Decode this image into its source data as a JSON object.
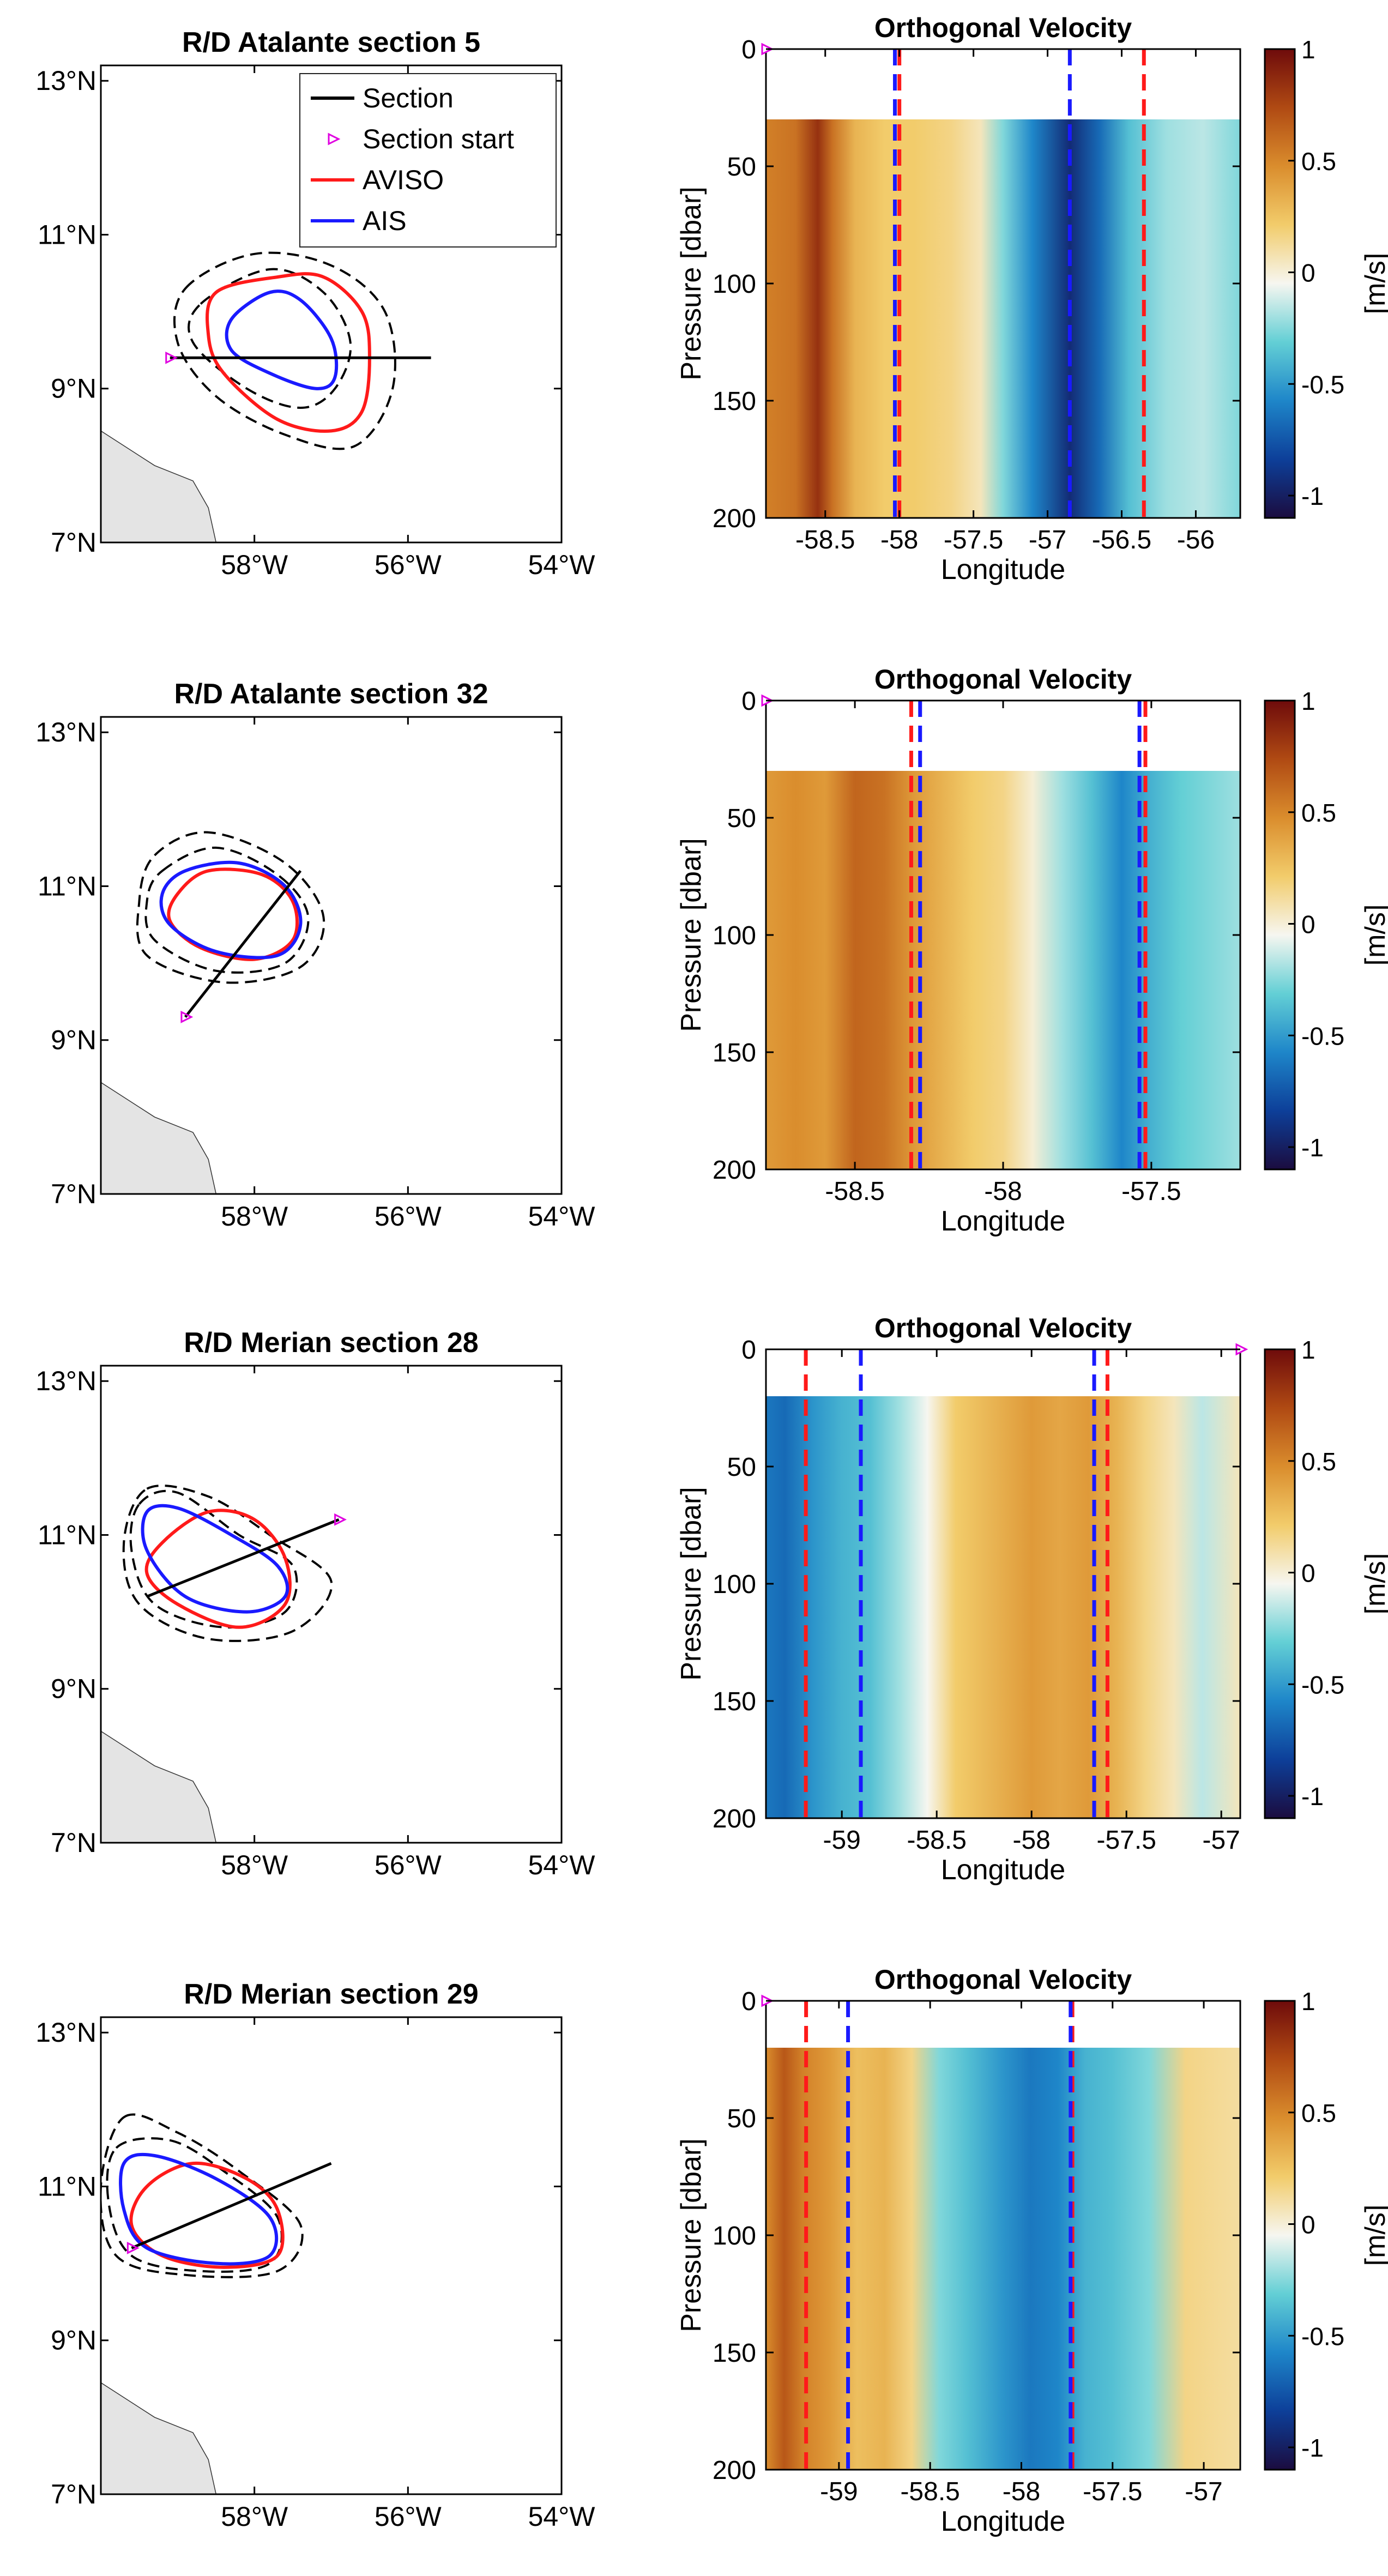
{
  "legend": [
    "Section",
    "Section start",
    "AVISO",
    "AIS"
  ],
  "colors": {
    "section": "#000000",
    "section_start": "#e000e0",
    "aviso": "#ff1a1a",
    "ais": "#1a1aff",
    "land": "#e4e4e4"
  },
  "map_axes": {
    "lat_ticks": [
      {
        "v": 13,
        "label": "13°N"
      },
      {
        "v": 11,
        "label": "11°N"
      },
      {
        "v": 9,
        "label": "9°N"
      },
      {
        "v": 7,
        "label": "7°N"
      }
    ],
    "lon_ticks": [
      {
        "v": -58,
        "label": "58°W"
      },
      {
        "v": -56,
        "label": "56°W"
      },
      {
        "v": -54,
        "label": "54°W"
      }
    ],
    "lon_range": [
      -60,
      -54
    ],
    "lat_range": [
      7,
      13.2
    ]
  },
  "velocity_axes": {
    "title": "Orthogonal Velocity",
    "xlabel": "Longitude",
    "ylabel": "Pressure [dbar]",
    "y_ticks": [
      "0",
      "50",
      "100",
      "150",
      "200"
    ],
    "colorbar_label": "[m/s]",
    "colorbar_ticks": [
      "1",
      "0.5",
      "0",
      "-0.5",
      "-1"
    ],
    "colormap": [
      "#1b0c3f",
      "#0d3f99",
      "#1e86c9",
      "#63cfd5",
      "#f6f6f0",
      "#f2cc6b",
      "#da8d2d",
      "#b04a13",
      "#6e0b0b"
    ]
  },
  "chart_data": [
    {
      "type": "map",
      "title": "R/D Atalante section 5",
      "section_line": [
        [
          -59.1,
          9.4
        ],
        [
          -55.7,
          9.4
        ]
      ],
      "section_start": [
        -59.1,
        9.4
      ],
      "aviso_contour": [
        [
          -58.5,
          10.25
        ],
        [
          -57.7,
          10.45
        ],
        [
          -57.1,
          10.45
        ],
        [
          -56.6,
          10.0
        ],
        [
          -56.5,
          9.4
        ],
        [
          -56.6,
          8.7
        ],
        [
          -57.0,
          8.45
        ],
        [
          -57.7,
          8.6
        ],
        [
          -58.4,
          9.2
        ],
        [
          -58.6,
          9.7
        ]
      ],
      "ais_contour": [
        [
          -58.3,
          9.9
        ],
        [
          -57.8,
          10.25
        ],
        [
          -57.4,
          10.15
        ],
        [
          -57.0,
          9.65
        ],
        [
          -56.95,
          9.15
        ],
        [
          -57.2,
          9.0
        ],
        [
          -57.8,
          9.2
        ],
        [
          -58.3,
          9.5
        ]
      ],
      "dashed_inner": [
        [
          -58.7,
          10.1
        ],
        [
          -57.8,
          10.55
        ],
        [
          -57.1,
          10.25
        ],
        [
          -56.75,
          9.6
        ],
        [
          -56.95,
          9.0
        ],
        [
          -57.4,
          8.75
        ],
        [
          -58.1,
          9.0
        ],
        [
          -58.8,
          9.6
        ]
      ],
      "dashed_outer": [
        [
          -58.9,
          10.3
        ],
        [
          -58.0,
          10.75
        ],
        [
          -57.0,
          10.6
        ],
        [
          -56.3,
          10.0
        ],
        [
          -56.2,
          9.0
        ],
        [
          -56.7,
          8.25
        ],
        [
          -57.6,
          8.4
        ],
        [
          -58.5,
          8.9
        ],
        [
          -59.0,
          9.6
        ]
      ]
    },
    {
      "type": "heatmap",
      "title": "Orthogonal Velocity",
      "xlim": [
        -58.9,
        -55.7
      ],
      "x_ticks": [
        -58.5,
        -58,
        -57.5,
        -57,
        -56.5,
        -56
      ],
      "x_tick_labels": [
        "-58.5",
        "-58",
        "-57.5",
        "-57",
        "-56.5",
        "-56"
      ],
      "ylim": [
        0,
        200
      ],
      "data_top_pressure": 30,
      "section_start_x": -58.9,
      "aviso_edges": [
        -58.0,
        -56.35
      ],
      "ais_edges": [
        -58.03,
        -56.85
      ],
      "velocity_profile": [
        [
          -58.9,
          0.55
        ],
        [
          -58.7,
          0.6
        ],
        [
          -58.55,
          0.85
        ],
        [
          -58.45,
          0.6
        ],
        [
          -58.3,
          0.35
        ],
        [
          -58.1,
          0.25
        ],
        [
          -57.9,
          0.25
        ],
        [
          -57.65,
          0.2
        ],
        [
          -57.45,
          0.1
        ],
        [
          -57.3,
          -0.2
        ],
        [
          -57.1,
          -0.5
        ],
        [
          -56.85,
          -0.85
        ],
        [
          -56.65,
          -0.6
        ],
        [
          -56.45,
          -0.3
        ],
        [
          -56.2,
          -0.15
        ],
        [
          -55.95,
          -0.1
        ],
        [
          -55.7,
          -0.2
        ]
      ]
    },
    {
      "type": "map",
      "title": "R/D Atalante section 32",
      "section_line": [
        [
          -58.9,
          9.3
        ],
        [
          -57.4,
          11.2
        ]
      ],
      "section_start": [
        -58.9,
        9.3
      ],
      "aviso_contour": [
        [
          -59.0,
          10.9
        ],
        [
          -58.6,
          11.2
        ],
        [
          -57.9,
          11.15
        ],
        [
          -57.5,
          10.8
        ],
        [
          -57.5,
          10.3
        ],
        [
          -58.0,
          10.05
        ],
        [
          -58.7,
          10.2
        ],
        [
          -59.1,
          10.55
        ]
      ],
      "ais_contour": [
        [
          -58.9,
          11.2
        ],
        [
          -58.2,
          11.3
        ],
        [
          -57.6,
          11.0
        ],
        [
          -57.4,
          10.5
        ],
        [
          -57.7,
          10.1
        ],
        [
          -58.5,
          10.15
        ],
        [
          -59.1,
          10.5
        ],
        [
          -59.2,
          10.9
        ]
      ],
      "dashed_inner": [
        [
          -59.2,
          11.2
        ],
        [
          -58.5,
          11.5
        ],
        [
          -57.7,
          11.15
        ],
        [
          -57.3,
          10.6
        ],
        [
          -57.6,
          10.0
        ],
        [
          -58.5,
          9.9
        ],
        [
          -59.3,
          10.3
        ],
        [
          -59.4,
          10.8
        ]
      ],
      "dashed_outer": [
        [
          -59.3,
          11.4
        ],
        [
          -58.6,
          11.7
        ],
        [
          -57.6,
          11.3
        ],
        [
          -57.1,
          10.6
        ],
        [
          -57.4,
          9.95
        ],
        [
          -58.4,
          9.75
        ],
        [
          -59.4,
          10.1
        ],
        [
          -59.5,
          10.8
        ]
      ]
    },
    {
      "type": "heatmap",
      "title": "Orthogonal Velocity",
      "xlim": [
        -58.8,
        -57.2
      ],
      "x_ticks": [
        -58.5,
        -58,
        -57.5
      ],
      "x_tick_labels": [
        "-58.5",
        "-58",
        "-57.5"
      ],
      "ylim": [
        0,
        200
      ],
      "data_top_pressure": 30,
      "section_start_x": -58.8,
      "aviso_edges": [
        -58.31,
        -57.52
      ],
      "ais_edges": [
        -58.28,
        -57.54
      ],
      "velocity_profile": [
        [
          -58.8,
          0.45
        ],
        [
          -58.7,
          0.5
        ],
        [
          -58.6,
          0.45
        ],
        [
          -58.5,
          0.65
        ],
        [
          -58.4,
          0.6
        ],
        [
          -58.3,
          0.45
        ],
        [
          -58.2,
          0.35
        ],
        [
          -58.1,
          0.25
        ],
        [
          -58.0,
          0.2
        ],
        [
          -57.9,
          0.05
        ],
        [
          -57.8,
          -0.15
        ],
        [
          -57.7,
          -0.3
        ],
        [
          -57.6,
          -0.5
        ],
        [
          -57.5,
          -0.35
        ],
        [
          -57.4,
          -0.25
        ],
        [
          -57.3,
          -0.2
        ],
        [
          -57.2,
          -0.15
        ]
      ]
    },
    {
      "type": "map",
      "title": "R/D Merian section 28",
      "section_line": [
        [
          -59.4,
          10.2
        ],
        [
          -56.9,
          11.2
        ]
      ],
      "section_start": [
        -56.9,
        11.2
      ],
      "aviso_contour": [
        [
          -59.2,
          10.9
        ],
        [
          -58.6,
          11.3
        ],
        [
          -58.0,
          11.2
        ],
        [
          -57.6,
          10.7
        ],
        [
          -57.6,
          10.1
        ],
        [
          -58.2,
          9.8
        ],
        [
          -59.0,
          10.1
        ],
        [
          -59.4,
          10.5
        ]
      ],
      "ais_contour": [
        [
          -59.4,
          11.3
        ],
        [
          -59.0,
          11.35
        ],
        [
          -58.3,
          11.0
        ],
        [
          -57.7,
          10.6
        ],
        [
          -57.6,
          10.2
        ],
        [
          -58.1,
          10.0
        ],
        [
          -58.9,
          10.2
        ],
        [
          -59.4,
          10.8
        ]
      ],
      "dashed_inner": [
        [
          -59.5,
          11.4
        ],
        [
          -59.0,
          11.55
        ],
        [
          -58.2,
          11.0
        ],
        [
          -57.5,
          10.6
        ],
        [
          -57.6,
          10.0
        ],
        [
          -58.4,
          9.8
        ],
        [
          -59.3,
          10.1
        ],
        [
          -59.6,
          10.8
        ]
      ],
      "dashed_outer": [
        [
          -59.4,
          11.6
        ],
        [
          -58.6,
          11.5
        ],
        [
          -57.8,
          11.0
        ],
        [
          -57.0,
          10.4
        ],
        [
          -57.5,
          9.75
        ],
        [
          -58.6,
          9.65
        ],
        [
          -59.5,
          10.1
        ],
        [
          -59.7,
          10.9
        ]
      ]
    },
    {
      "type": "heatmap",
      "title": "Orthogonal Velocity",
      "xlim": [
        -59.4,
        -56.9
      ],
      "x_ticks": [
        -59,
        -58.5,
        -58,
        -57.5,
        -57
      ],
      "x_tick_labels": [
        "-59",
        "-58.5",
        "-58",
        "-57.5",
        "-57"
      ],
      "ylim": [
        0,
        200
      ],
      "data_top_pressure": 20,
      "section_start_x": -56.9,
      "aviso_edges": [
        -59.19,
        -57.6
      ],
      "ais_edges": [
        -58.9,
        -57.67
      ],
      "velocity_profile": [
        [
          -59.4,
          -0.55
        ],
        [
          -59.3,
          -0.6
        ],
        [
          -59.15,
          -0.45
        ],
        [
          -59.0,
          -0.35
        ],
        [
          -58.85,
          -0.3
        ],
        [
          -58.7,
          -0.15
        ],
        [
          -58.55,
          0.0
        ],
        [
          -58.4,
          0.25
        ],
        [
          -58.2,
          0.35
        ],
        [
          -58.0,
          0.45
        ],
        [
          -57.85,
          0.4
        ],
        [
          -57.7,
          0.45
        ],
        [
          -57.55,
          0.35
        ],
        [
          -57.4,
          0.2
        ],
        [
          -57.25,
          0.1
        ],
        [
          -57.1,
          -0.1
        ],
        [
          -56.9,
          0.1
        ]
      ]
    },
    {
      "type": "map",
      "title": "R/D Merian section 29",
      "section_line": [
        [
          -59.6,
          10.2
        ],
        [
          -57.0,
          11.3
        ]
      ],
      "section_start": [
        -59.6,
        10.2
      ],
      "aviso_contour": [
        [
          -59.4,
          11.0
        ],
        [
          -58.8,
          11.3
        ],
        [
          -58.1,
          11.1
        ],
        [
          -57.7,
          10.7
        ],
        [
          -57.7,
          10.1
        ],
        [
          -58.4,
          9.95
        ],
        [
          -59.2,
          10.1
        ],
        [
          -59.6,
          10.5
        ]
      ],
      "ais_contour": [
        [
          -59.7,
          11.3
        ],
        [
          -59.3,
          11.4
        ],
        [
          -58.5,
          11.1
        ],
        [
          -57.8,
          10.6
        ],
        [
          -57.8,
          10.1
        ],
        [
          -58.5,
          10.0
        ],
        [
          -59.4,
          10.2
        ],
        [
          -59.7,
          10.7
        ]
      ],
      "dashed_inner": [
        [
          -59.8,
          11.5
        ],
        [
          -59.1,
          11.6
        ],
        [
          -58.4,
          11.2
        ],
        [
          -57.7,
          10.6
        ],
        [
          -57.8,
          10.0
        ],
        [
          -58.7,
          9.9
        ],
        [
          -59.6,
          10.1
        ],
        [
          -59.9,
          10.8
        ]
      ],
      "dashed_outer": [
        [
          -59.7,
          11.9
        ],
        [
          -59.0,
          11.7
        ],
        [
          -58.2,
          11.2
        ],
        [
          -57.4,
          10.5
        ],
        [
          -57.7,
          9.9
        ],
        [
          -58.9,
          9.85
        ],
        [
          -59.8,
          10.1
        ],
        [
          -60.0,
          11.0
        ]
      ]
    },
    {
      "type": "heatmap",
      "title": "Orthogonal Velocity",
      "xlim": [
        -59.4,
        -56.8
      ],
      "x_ticks": [
        -59,
        -58.5,
        -58,
        -57.5,
        -57
      ],
      "x_tick_labels": [
        "-59",
        "-58.5",
        "-58",
        "-57.5",
        "-57"
      ],
      "ylim": [
        0,
        200
      ],
      "data_top_pressure": 20,
      "section_start_x": -59.4,
      "aviso_edges": [
        -59.18,
        -57.72
      ],
      "ais_edges": [
        -58.95,
        -57.73
      ],
      "velocity_profile": [
        [
          -59.4,
          0.5
        ],
        [
          -59.3,
          0.7
        ],
        [
          -59.2,
          0.55
        ],
        [
          -59.05,
          0.45
        ],
        [
          -58.9,
          0.3
        ],
        [
          -58.75,
          0.35
        ],
        [
          -58.6,
          0.2
        ],
        [
          -58.45,
          -0.2
        ],
        [
          -58.3,
          -0.3
        ],
        [
          -58.1,
          -0.45
        ],
        [
          -57.95,
          -0.55
        ],
        [
          -57.8,
          -0.5
        ],
        [
          -57.65,
          -0.35
        ],
        [
          -57.5,
          -0.3
        ],
        [
          -57.3,
          -0.2
        ],
        [
          -57.1,
          0.2
        ],
        [
          -56.8,
          0.15
        ]
      ]
    }
  ]
}
